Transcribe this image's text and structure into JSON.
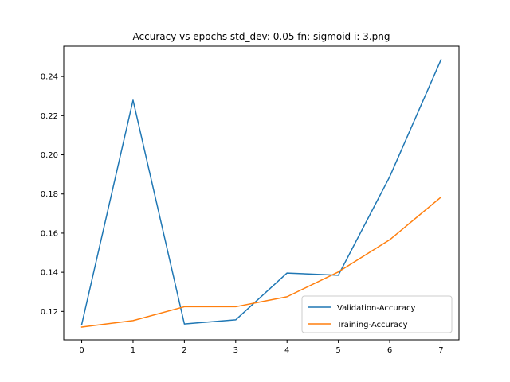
{
  "chart_data": {
    "type": "line",
    "title": "Accuracy vs epochs std_dev: 0.05 fn: sigmoid i: 3.png",
    "xlabel": "",
    "ylabel": "",
    "x": [
      0,
      1,
      2,
      3,
      4,
      5,
      6,
      7
    ],
    "xlim": [
      -0.35,
      7.35
    ],
    "ylim": [
      0.1055,
      0.2555
    ],
    "xticks": [
      "0",
      "1",
      "2",
      "3",
      "4",
      "5",
      "6",
      "7"
    ],
    "yticks": [
      "0.12",
      "0.14",
      "0.16",
      "0.18",
      "0.20",
      "0.22",
      "0.24"
    ],
    "grid": false,
    "legend_position": "lower right",
    "series": [
      {
        "name": "Validation-Accuracy",
        "color": "#1f77b4",
        "values": [
          0.1133,
          0.2279,
          0.1136,
          0.1157,
          0.1396,
          0.1385,
          0.1888,
          0.2486
        ]
      },
      {
        "name": "Training-Accuracy",
        "color": "#ff7f0e",
        "values": [
          0.112,
          0.1153,
          0.1224,
          0.1224,
          0.1275,
          0.1402,
          0.1566,
          0.1784
        ]
      }
    ]
  }
}
